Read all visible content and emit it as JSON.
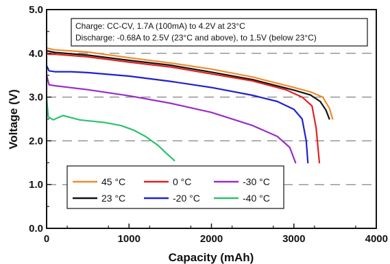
{
  "chart_data": {
    "type": "line",
    "xlabel": "Capacity (mAh)",
    "ylabel": "Voltage (V)",
    "xlim": [
      0,
      4000
    ],
    "ylim": [
      0,
      5
    ],
    "x_ticks": [
      0,
      1000,
      2000,
      3000,
      4000
    ],
    "x_tick_labels": [
      "0",
      "1000",
      "2000",
      "3000",
      "4000"
    ],
    "y_ticks": [
      0,
      1,
      2,
      3,
      4,
      5
    ],
    "y_tick_labels": [
      "0.0",
      "1.0",
      "2.0",
      "3.0",
      "4.0",
      "5.0"
    ],
    "grid": "dashed horizontal",
    "annotations": [
      "Charge: CC-CV, 1.7A (100mA) to 4.2V at 23°C",
      "Discharge: -0.68A to 2.5V (23°C and above), to 1.5V (below 23°C)"
    ],
    "legend_placement": "bottom-center",
    "series": [
      {
        "name": "45 °C",
        "color": "#f08a2c",
        "points": [
          [
            0,
            4.12
          ],
          [
            100,
            4.08
          ],
          [
            500,
            4.03
          ],
          [
            1000,
            3.9
          ],
          [
            1500,
            3.78
          ],
          [
            2000,
            3.64
          ],
          [
            2500,
            3.46
          ],
          [
            3000,
            3.22
          ],
          [
            3200,
            3.12
          ],
          [
            3350,
            3.0
          ],
          [
            3430,
            2.75
          ],
          [
            3470,
            2.5
          ]
        ]
      },
      {
        "name": "23 °C",
        "color": "#111111",
        "points": [
          [
            0,
            4.06
          ],
          [
            100,
            4.02
          ],
          [
            500,
            3.96
          ],
          [
            1000,
            3.84
          ],
          [
            1500,
            3.73
          ],
          [
            2000,
            3.57
          ],
          [
            2500,
            3.4
          ],
          [
            3000,
            3.16
          ],
          [
            3200,
            3.05
          ],
          [
            3320,
            2.9
          ],
          [
            3390,
            2.7
          ],
          [
            3430,
            2.5
          ]
        ]
      },
      {
        "name": "0 °C",
        "color": "#e02020",
        "points": [
          [
            0,
            4.02
          ],
          [
            20,
            3.98
          ],
          [
            100,
            3.98
          ],
          [
            500,
            3.92
          ],
          [
            1000,
            3.8
          ],
          [
            1500,
            3.69
          ],
          [
            2000,
            3.53
          ],
          [
            2500,
            3.37
          ],
          [
            2900,
            3.17
          ],
          [
            3100,
            3.0
          ],
          [
            3220,
            2.8
          ],
          [
            3270,
            2.3
          ],
          [
            3310,
            1.5
          ]
        ]
      },
      {
        "name": "-20 °C",
        "color": "#2020d0",
        "points": [
          [
            0,
            3.72
          ],
          [
            30,
            3.6
          ],
          [
            100,
            3.58
          ],
          [
            300,
            3.58
          ],
          [
            500,
            3.56
          ],
          [
            1000,
            3.48
          ],
          [
            1500,
            3.36
          ],
          [
            2000,
            3.22
          ],
          [
            2500,
            3.04
          ],
          [
            2800,
            2.9
          ],
          [
            3000,
            2.72
          ],
          [
            3100,
            2.5
          ],
          [
            3150,
            2.0
          ],
          [
            3170,
            1.5
          ]
        ]
      },
      {
        "name": "-30 °C",
        "color": "#9a2cc8",
        "points": [
          [
            0,
            3.5
          ],
          [
            30,
            3.28
          ],
          [
            100,
            3.26
          ],
          [
            500,
            3.17
          ],
          [
            1000,
            3.03
          ],
          [
            1500,
            2.86
          ],
          [
            2000,
            2.65
          ],
          [
            2500,
            2.35
          ],
          [
            2800,
            2.1
          ],
          [
            2950,
            1.85
          ],
          [
            3020,
            1.5
          ]
        ]
      },
      {
        "name": "-40 °C",
        "color": "#2cc070",
        "points": [
          [
            0,
            2.98
          ],
          [
            20,
            2.55
          ],
          [
            80,
            2.48
          ],
          [
            200,
            2.58
          ],
          [
            400,
            2.48
          ],
          [
            700,
            2.42
          ],
          [
            900,
            2.35
          ],
          [
            1050,
            2.25
          ],
          [
            1200,
            2.1
          ],
          [
            1350,
            1.9
          ],
          [
            1450,
            1.72
          ],
          [
            1550,
            1.55
          ]
        ]
      }
    ]
  }
}
